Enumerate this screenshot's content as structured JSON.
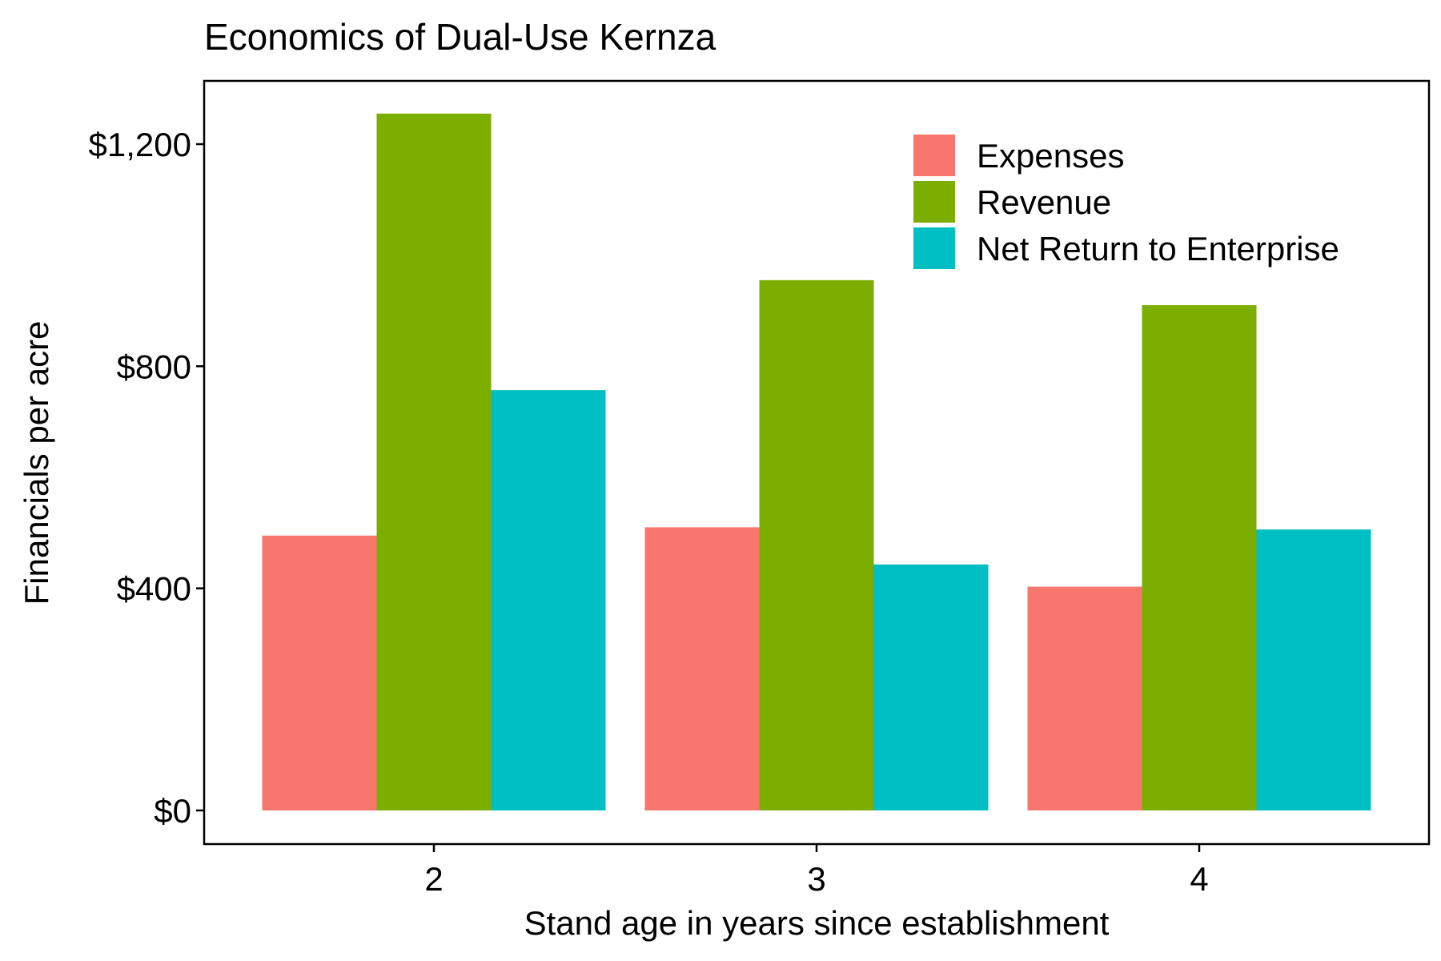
{
  "chart_data": {
    "type": "bar",
    "title": "Economics of Dual-Use Kernza",
    "xlabel": "Stand age in years since establishment",
    "ylabel": "Financials per acre",
    "categories": [
      "2",
      "3",
      "4"
    ],
    "series": [
      {
        "name": "Expenses",
        "color": "#F8766D",
        "values": [
          495,
          510,
          403
        ]
      },
      {
        "name": "Revenue",
        "color": "#7CAE00",
        "values": [
          1255,
          955,
          910
        ]
      },
      {
        "name": "Net Return to Enterprise",
        "color": "#00BFC4",
        "values": [
          757,
          443,
          506
        ]
      }
    ],
    "yticks": [
      0,
      400,
      800,
      1200
    ],
    "ytick_labels": [
      "$0",
      "$400",
      "$800",
      "$1,200"
    ],
    "ylim": [
      -60,
      1315
    ],
    "grid": false,
    "legend_position": "top-right"
  }
}
